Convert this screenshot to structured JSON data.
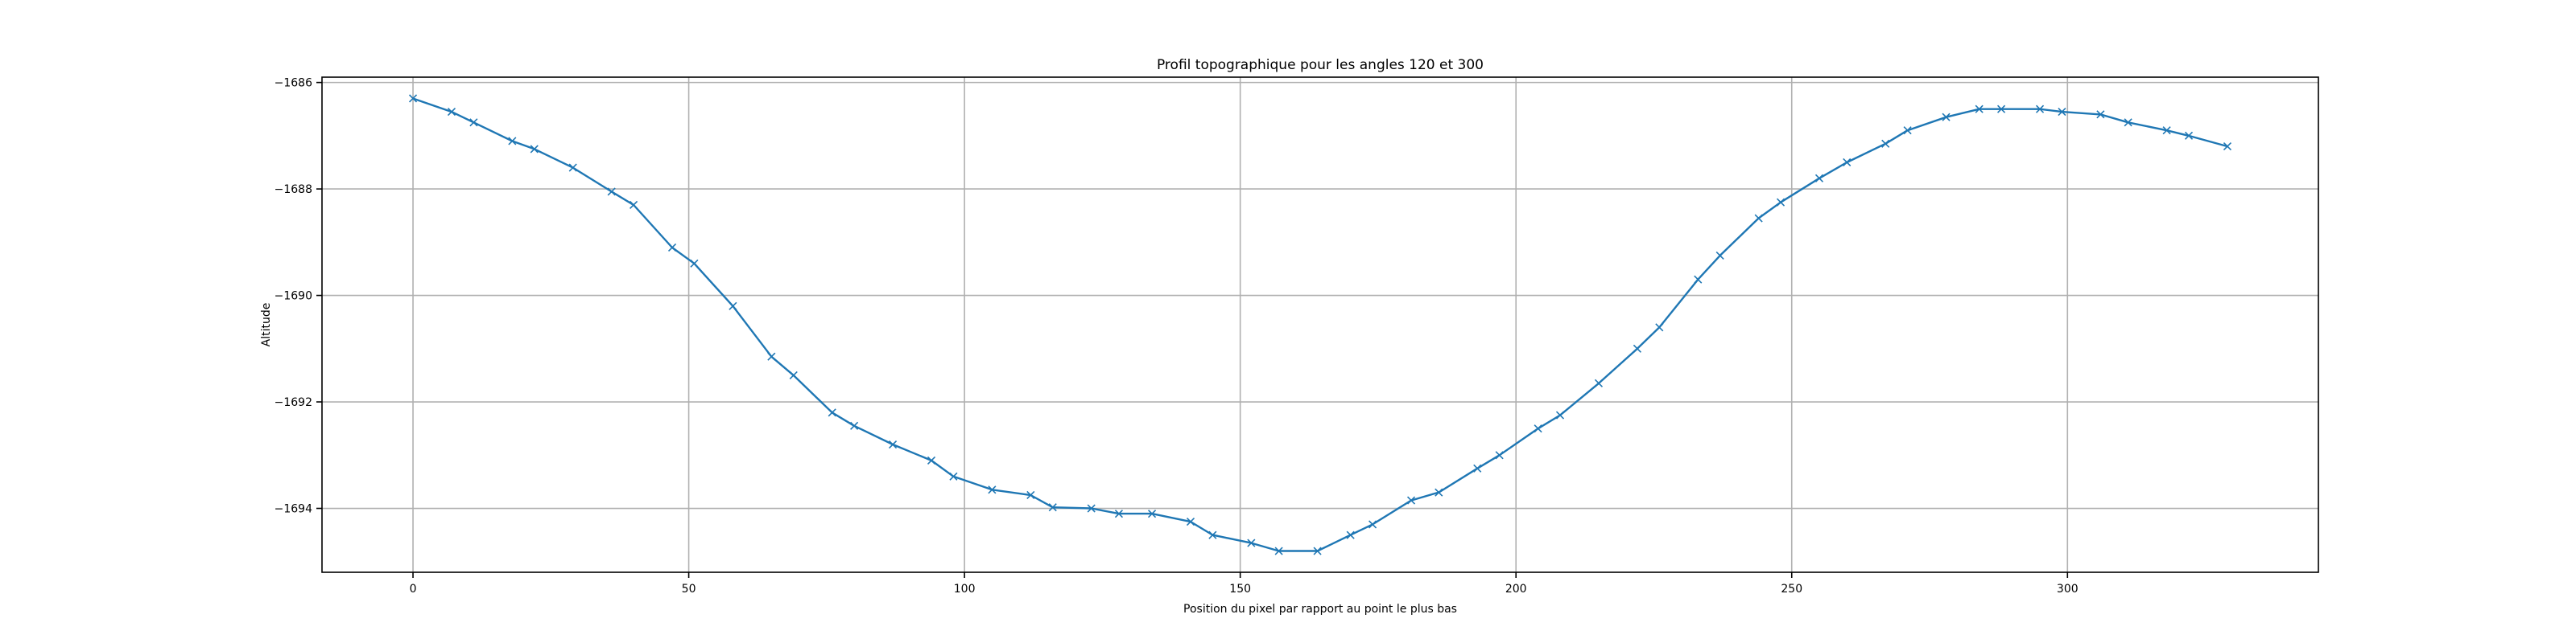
{
  "chart_data": {
    "type": "line",
    "title": "Profil topographique pour les angles 120 et 300",
    "xlabel": "Position du pixel par rapport au point le plus bas",
    "ylabel": "Altitude",
    "xlim": [
      -16.5,
      345.5
    ],
    "ylim": [
      -1695.2,
      -1685.9
    ],
    "xticks": [
      0,
      50,
      100,
      150,
      200,
      250,
      300
    ],
    "yticks": [
      -1694,
      -1692,
      -1690,
      -1688,
      -1686
    ],
    "grid": true,
    "marker": "x",
    "color": "#1f77b4",
    "series": [
      {
        "x": [
          0,
          7,
          11,
          18,
          22,
          29,
          36,
          40,
          47,
          51,
          58,
          65,
          69,
          76,
          80,
          87,
          94,
          98,
          105,
          112,
          116,
          123,
          128,
          134,
          141,
          145,
          152,
          157,
          164,
          170,
          174,
          181,
          186,
          193,
          197,
          204,
          208,
          215,
          222,
          226,
          233,
          237,
          244,
          248,
          255,
          260,
          267,
          271,
          278,
          284,
          288,
          295,
          299,
          306,
          311,
          318,
          322,
          329
        ],
        "y": [
          -1686.3,
          -1686.55,
          -1686.75,
          -1687.1,
          -1687.25,
          -1687.6,
          -1688.05,
          -1688.3,
          -1689.1,
          -1689.4,
          -1690.2,
          -1691.15,
          -1691.5,
          -1692.2,
          -1692.45,
          -1692.8,
          -1693.1,
          -1693.4,
          -1693.65,
          -1693.75,
          -1693.98,
          -1694.0,
          -1694.1,
          -1694.1,
          -1694.25,
          -1694.5,
          -1694.65,
          -1694.8,
          -1694.8,
          -1694.5,
          -1694.3,
          -1693.85,
          -1693.7,
          -1693.25,
          -1693.0,
          -1692.5,
          -1692.25,
          -1691.65,
          -1691.0,
          -1690.6,
          -1689.7,
          -1689.25,
          -1688.55,
          -1688.25,
          -1687.8,
          -1687.5,
          -1687.15,
          -1686.9,
          -1686.65,
          -1686.5,
          -1686.5,
          -1686.5,
          -1686.55,
          -1686.6,
          -1686.75,
          -1686.9,
          -1687.0,
          -1687.2
        ]
      }
    ]
  }
}
